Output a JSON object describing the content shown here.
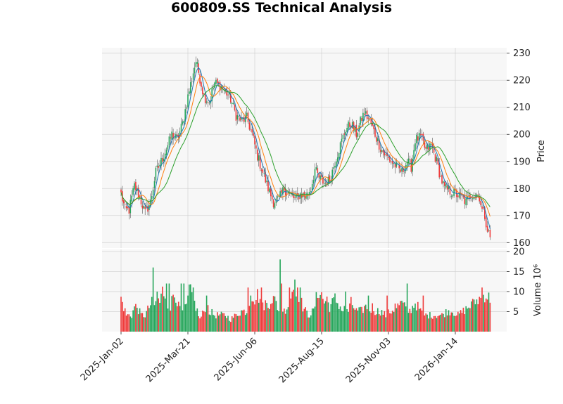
{
  "chart_data": {
    "type": "candlestick",
    "title": "600809.SS Technical Analysis",
    "price_axis": {
      "label": "Price",
      "ylim": [
        158,
        232
      ],
      "ticks": [
        160,
        170,
        180,
        190,
        200,
        210,
        220,
        230
      ]
    },
    "volume_axis": {
      "label": "Volume  10⁶",
      "ylim": [
        0,
        20.5
      ],
      "ticks": [
        5,
        10,
        15,
        20
      ],
      "tick_labels": [
        "5",
        "10",
        "15",
        "20"
      ]
    },
    "x_axis": {
      "tick_labels": [
        "2025-Jan-02",
        "2025-Mar-21",
        "2025-Jun-06",
        "2025-Aug-15",
        "2025-Nov-03",
        "2026-Jan-14"
      ]
    },
    "grid": true,
    "colors": {
      "up": "#26a65b",
      "down": "#ef3b3b",
      "ma_short": "#1f77b4",
      "ma_mid": "#ff7f0e",
      "ma_long": "#2ca02c",
      "panel_bg": "#f7f7f7",
      "grid": "#d5d5d5"
    },
    "price_anchors": [
      [
        0,
        178
      ],
      [
        3,
        172
      ],
      [
        6,
        172
      ],
      [
        10,
        181
      ],
      [
        13,
        178
      ],
      [
        18,
        171
      ],
      [
        22,
        175
      ],
      [
        26,
        186
      ],
      [
        30,
        190
      ],
      [
        35,
        196
      ],
      [
        38,
        200
      ],
      [
        42,
        198
      ],
      [
        46,
        204
      ],
      [
        50,
        214
      ],
      [
        54,
        223
      ],
      [
        56,
        227
      ],
      [
        58,
        223
      ],
      [
        62,
        214
      ],
      [
        66,
        212
      ],
      [
        70,
        219
      ],
      [
        74,
        218
      ],
      [
        78,
        216
      ],
      [
        82,
        213
      ],
      [
        86,
        207
      ],
      [
        90,
        205
      ],
      [
        94,
        206
      ],
      [
        98,
        200
      ],
      [
        102,
        192
      ],
      [
        106,
        186
      ],
      [
        110,
        180
      ],
      [
        114,
        175
      ],
      [
        118,
        176
      ],
      [
        122,
        180
      ],
      [
        126,
        178
      ],
      [
        130,
        176
      ],
      [
        134,
        178
      ],
      [
        138,
        177
      ],
      [
        142,
        180
      ],
      [
        145,
        187
      ],
      [
        148,
        184
      ],
      [
        152,
        182
      ],
      [
        156,
        183
      ],
      [
        160,
        190
      ],
      [
        164,
        196
      ],
      [
        168,
        202
      ],
      [
        172,
        204
      ],
      [
        176,
        200
      ],
      [
        180,
        206
      ],
      [
        182,
        208
      ],
      [
        186,
        205
      ],
      [
        190,
        200
      ],
      [
        194,
        195
      ],
      [
        198,
        192
      ],
      [
        202,
        190
      ],
      [
        206,
        188
      ],
      [
        210,
        186
      ],
      [
        214,
        190
      ],
      [
        217,
        188
      ],
      [
        220,
        198
      ],
      [
        224,
        199
      ],
      [
        228,
        194
      ],
      [
        232,
        196
      ],
      [
        236,
        190
      ],
      [
        239,
        184
      ],
      [
        242,
        180
      ],
      [
        246,
        179
      ],
      [
        250,
        178
      ],
      [
        254,
        177
      ],
      [
        258,
        175
      ],
      [
        262,
        178
      ],
      [
        266,
        178
      ],
      [
        268,
        177
      ],
      [
        270,
        172
      ],
      [
        272,
        170
      ],
      [
        274,
        165
      ],
      [
        276,
        162
      ]
    ],
    "volume_anchors": [
      [
        0,
        8
      ],
      [
        2,
        6
      ],
      [
        4,
        4
      ],
      [
        8,
        4
      ],
      [
        10,
        6
      ],
      [
        12,
        6
      ],
      [
        15,
        4
      ],
      [
        18,
        4
      ],
      [
        21,
        6
      ],
      [
        23,
        7
      ],
      [
        25,
        6
      ],
      [
        27,
        9
      ],
      [
        29,
        7
      ],
      [
        31,
        10
      ],
      [
        33,
        9
      ],
      [
        35,
        7
      ],
      [
        37,
        6
      ],
      [
        39,
        9
      ],
      [
        41,
        9
      ],
      [
        43,
        6
      ],
      [
        45,
        5
      ],
      [
        47,
        5
      ],
      [
        49,
        6
      ],
      [
        51,
        10
      ],
      [
        53,
        9
      ],
      [
        55,
        7
      ],
      [
        57,
        5
      ],
      [
        59,
        3
      ],
      [
        62,
        5
      ],
      [
        64,
        7
      ],
      [
        66,
        5
      ],
      [
        70,
        4
      ],
      [
        74,
        4
      ],
      [
        78,
        4
      ],
      [
        82,
        3
      ],
      [
        86,
        4
      ],
      [
        90,
        5
      ],
      [
        94,
        5
      ],
      [
        96,
        7
      ],
      [
        98,
        9
      ],
      [
        100,
        8
      ],
      [
        102,
        9
      ],
      [
        104,
        8
      ],
      [
        106,
        6
      ],
      [
        108,
        7
      ],
      [
        110,
        6
      ],
      [
        112,
        8
      ],
      [
        114,
        8
      ],
      [
        116,
        7
      ],
      [
        118,
        5
      ],
      [
        120,
        6
      ],
      [
        122,
        5
      ],
      [
        124,
        6
      ],
      [
        126,
        7
      ],
      [
        128,
        10
      ],
      [
        130,
        11
      ],
      [
        132,
        10
      ],
      [
        134,
        8
      ],
      [
        136,
        6
      ],
      [
        138,
        5
      ],
      [
        140,
        4
      ],
      [
        144,
        5
      ],
      [
        146,
        8
      ],
      [
        148,
        10
      ],
      [
        150,
        9
      ],
      [
        152,
        7
      ],
      [
        154,
        8
      ],
      [
        156,
        6
      ],
      [
        158,
        7
      ],
      [
        160,
        8
      ],
      [
        162,
        7
      ],
      [
        164,
        6
      ],
      [
        166,
        5
      ],
      [
        168,
        6
      ],
      [
        170,
        5
      ],
      [
        172,
        7
      ],
      [
        174,
        6
      ],
      [
        176,
        5
      ],
      [
        178,
        5
      ],
      [
        180,
        5
      ],
      [
        182,
        6
      ],
      [
        184,
        6
      ],
      [
        186,
        5
      ],
      [
        188,
        6
      ],
      [
        190,
        5
      ],
      [
        194,
        5
      ],
      [
        198,
        4
      ],
      [
        202,
        5
      ],
      [
        206,
        6
      ],
      [
        210,
        7
      ],
      [
        212,
        6
      ],
      [
        214,
        5
      ],
      [
        216,
        5
      ],
      [
        218,
        6
      ],
      [
        220,
        7
      ],
      [
        222,
        6
      ],
      [
        224,
        5
      ],
      [
        226,
        4
      ],
      [
        228,
        4
      ],
      [
        232,
        4
      ],
      [
        236,
        4
      ],
      [
        240,
        4
      ],
      [
        244,
        5
      ],
      [
        248,
        5
      ],
      [
        252,
        4
      ],
      [
        256,
        5
      ],
      [
        260,
        6
      ],
      [
        264,
        7
      ],
      [
        268,
        8
      ],
      [
        272,
        9
      ],
      [
        276,
        8
      ]
    ],
    "volume_spikes": [
      [
        24,
        16
      ],
      [
        34,
        12
      ],
      [
        36,
        12
      ],
      [
        45,
        12
      ],
      [
        47,
        12
      ],
      [
        54,
        11
      ],
      [
        64,
        9
      ],
      [
        95,
        11
      ],
      [
        97,
        9
      ],
      [
        105,
        11
      ],
      [
        119,
        18
      ],
      [
        120,
        12
      ],
      [
        126,
        11
      ],
      [
        130,
        13
      ],
      [
        132,
        11
      ],
      [
        134,
        11
      ],
      [
        168,
        10
      ],
      [
        185,
        9
      ],
      [
        199,
        9
      ],
      [
        205,
        7
      ],
      [
        214,
        12
      ],
      [
        226,
        9
      ],
      [
        264,
        8
      ],
      [
        270,
        11
      ]
    ]
  }
}
